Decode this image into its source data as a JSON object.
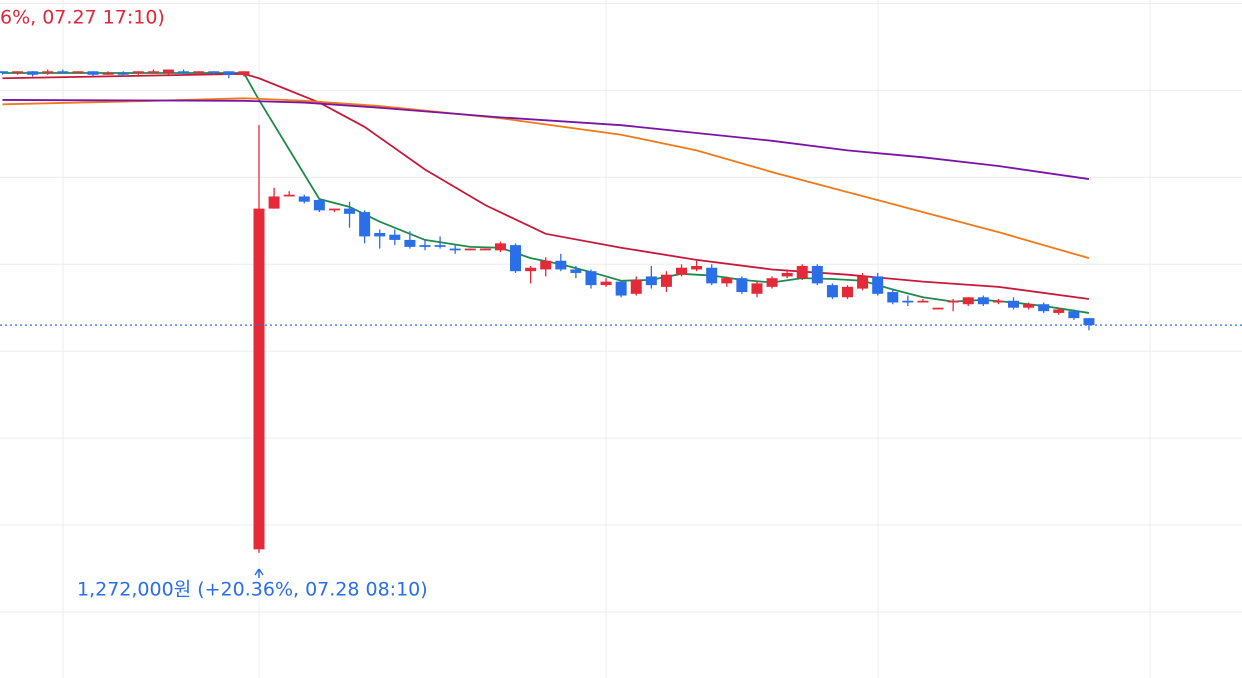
{
  "chart_data": {
    "type": "candlestick",
    "up_color": "#e42939",
    "down_color": "#2a6ee8",
    "ylim": [
      1200000,
      1590000
    ],
    "yticks": [
      1238000,
      1288000,
      1338000,
      1388000,
      1438000,
      1488000,
      1538000,
      1588000
    ],
    "grid": true,
    "open": [
      1549000,
      1548000,
      1549000,
      1548000,
      1549000,
      1548000,
      1549000,
      1547000,
      1548000,
      1548000,
      1548000,
      1548000,
      1549000,
      1548000,
      1549000,
      1549000,
      1547000,
      1274000,
      1470000,
      1477000,
      1477000,
      1475000,
      1469000,
      1470000,
      1468000,
      1456000,
      1455000,
      1452000,
      1449000,
      1449000,
      1447000,
      1446000,
      1446000,
      1446000,
      1449000,
      1434000,
      1435000,
      1440000,
      1435000,
      1434000,
      1426000,
      1428000,
      1421000,
      1431000,
      1425000,
      1432000,
      1435000,
      1436000,
      1427000,
      1430000,
      1421000,
      1425000,
      1431000,
      1430000,
      1437000,
      1426000,
      1419000,
      1424000,
      1431000,
      1422000,
      1417000,
      1416000,
      1412000,
      1416000,
      1415000,
      1419000,
      1416000,
      1417000,
      1413000,
      1415000,
      1410000,
      1411000,
      1407000
    ],
    "high": [
      1549000,
      1549000,
      1549000,
      1550000,
      1550000,
      1549000,
      1549000,
      1549000,
      1549000,
      1549000,
      1550000,
      1550000,
      1550000,
      1549000,
      1549000,
      1549000,
      1549000,
      1518000,
      1482000,
      1480000,
      1478000,
      1476000,
      1470000,
      1474000,
      1469000,
      1458000,
      1458000,
      1457000,
      1452000,
      1454000,
      1449000,
      1447000,
      1447000,
      1451000,
      1450000,
      1437000,
      1442000,
      1444000,
      1437000,
      1435000,
      1430000,
      1428000,
      1431000,
      1437000,
      1434000,
      1438000,
      1440000,
      1438000,
      1431000,
      1431000,
      1428000,
      1431000,
      1435000,
      1438000,
      1438000,
      1427000,
      1426000,
      1433000,
      1433000,
      1424000,
      1420000,
      1418000,
      1413000,
      1418000,
      1419000,
      1420000,
      1418000,
      1419000,
      1416000,
      1416000,
      1413000,
      1412000,
      1407000
    ],
    "low": [
      1547000,
      1547000,
      1546000,
      1547000,
      1548000,
      1548000,
      1546000,
      1547000,
      1546000,
      1547000,
      1548000,
      1547000,
      1547000,
      1547000,
      1547000,
      1545000,
      1546000,
      1272000,
      1470000,
      1477000,
      1473000,
      1468000,
      1468000,
      1459000,
      1450000,
      1447000,
      1449000,
      1447000,
      1446000,
      1447000,
      1444000,
      1446000,
      1446000,
      1445000,
      1433000,
      1427000,
      1431000,
      1434000,
      1430000,
      1424000,
      1425000,
      1419000,
      1420000,
      1424000,
      1422000,
      1431000,
      1434000,
      1426000,
      1425000,
      1421000,
      1419000,
      1424000,
      1430000,
      1429000,
      1426000,
      1418000,
      1418000,
      1423000,
      1420000,
      1415000,
      1414000,
      1416000,
      1412000,
      1411000,
      1414000,
      1414000,
      1415000,
      1412000,
      1412000,
      1410000,
      1409000,
      1406000,
      1400000
    ],
    "close": [
      1548000,
      1549000,
      1547000,
      1549000,
      1548000,
      1549000,
      1547000,
      1548000,
      1547000,
      1549000,
      1549000,
      1550000,
      1548000,
      1549000,
      1548000,
      1547000,
      1549000,
      1470000,
      1477000,
      1478000,
      1474000,
      1469000,
      1470000,
      1467000,
      1454000,
      1454000,
      1452000,
      1448000,
      1448000,
      1448000,
      1446000,
      1447000,
      1447000,
      1450000,
      1434000,
      1436000,
      1440000,
      1435000,
      1433000,
      1426000,
      1428000,
      1420000,
      1429000,
      1426000,
      1432000,
      1436000,
      1437000,
      1427000,
      1430000,
      1422000,
      1427000,
      1430000,
      1433000,
      1437000,
      1427000,
      1419000,
      1425000,
      1431000,
      1421000,
      1416000,
      1416000,
      1417000,
      1413000,
      1417000,
      1419000,
      1415000,
      1417000,
      1413000,
      1415000,
      1411000,
      1412000,
      1407000,
      1403000
    ],
    "lines": [
      {
        "color": "#1f8a4c",
        "x": [
          0,
          16,
          17,
          19,
          21,
          23,
          25,
          28,
          31,
          33,
          35,
          37,
          39,
          41,
          43,
          45,
          47,
          49,
          51,
          53,
          55,
          57,
          59,
          61,
          63,
          65,
          67,
          69,
          72
        ],
        "values": [
          1548000,
          1548000,
          1532500,
          1504000,
          1475500,
          1471000,
          1462500,
          1452000,
          1448000,
          1447500,
          1441500,
          1438000,
          1433500,
          1428500,
          1429000,
          1432500,
          1431500,
          1429000,
          1427500,
          1430000,
          1429500,
          1428500,
          1423500,
          1419000,
          1416500,
          1417500,
          1416000,
          1414000,
          1410000
        ]
      },
      {
        "color": "#c8183a",
        "x": [
          0,
          16,
          17,
          21,
          24,
          28,
          32,
          36,
          41,
          46,
          51,
          56,
          61,
          66,
          72
        ],
        "values": [
          1545000,
          1547500,
          1545000,
          1531000,
          1517000,
          1492500,
          1472000,
          1455500,
          1447500,
          1440500,
          1435000,
          1432000,
          1428000,
          1425000,
          1418000
        ]
      },
      {
        "color": "#f07a1a",
        "x": [
          0,
          10,
          16,
          20,
          25,
          33,
          41,
          46,
          51,
          56,
          61,
          66,
          72
        ],
        "values": [
          1530000,
          1532000,
          1533500,
          1532000,
          1529000,
          1522000,
          1512500,
          1503500,
          1491000,
          1479500,
          1468000,
          1456500,
          1441500
        ]
      },
      {
        "color": "#7b14a6",
        "x": [
          0,
          16,
          20,
          25,
          33,
          41,
          46,
          51,
          56,
          61,
          66,
          72
        ],
        "values": [
          1532500,
          1532000,
          1531000,
          1528000,
          1522500,
          1518000,
          1513500,
          1509000,
          1503500,
          1499500,
          1494500,
          1487000
        ]
      }
    ],
    "current_price": 1403000,
    "current_price_color": "#2a6ee8",
    "annotations": [
      {
        "text": "6%, 07.27 17:10)",
        "color": "#e0263b"
      },
      {
        "text": "1,272,000원 (+20.36%, 07.28 08:10)",
        "color": "#2a6ee8"
      }
    ]
  }
}
